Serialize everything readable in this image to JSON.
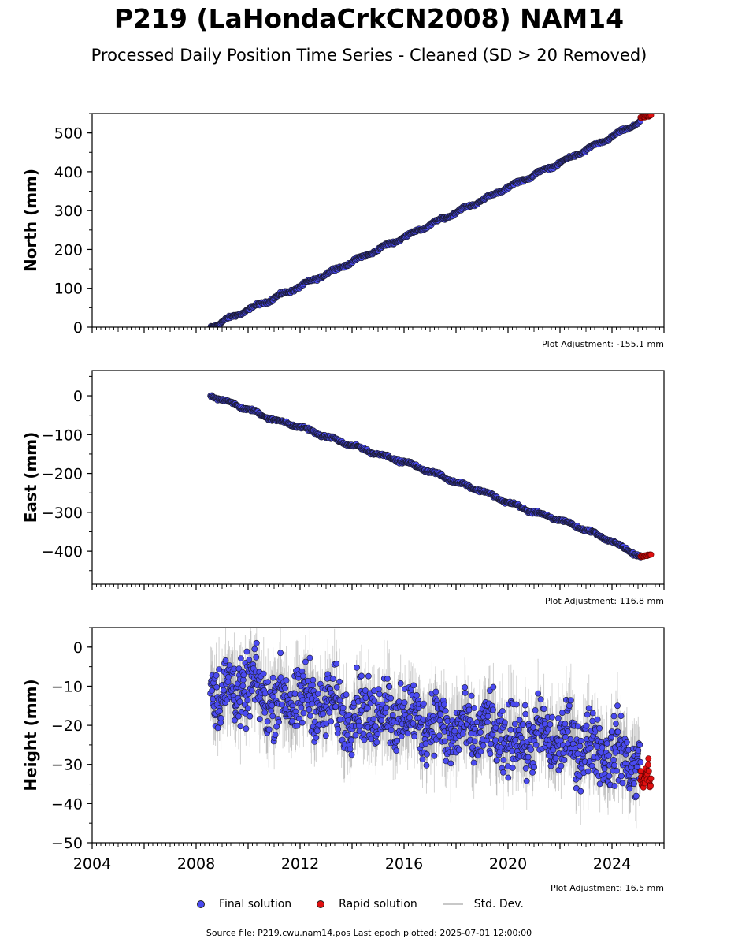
{
  "title": "P219 (LaHondaCrkCN2008) NAM14",
  "subtitle": "Processed Daily Position Time Series - Cleaned (SD > 20 Removed)",
  "source_line": "Source file: P219.cwu.nam14.pos  Last epoch plotted: 2025-07-01 12:00:00",
  "legend": {
    "final": "Final solution",
    "rapid": "Rapid solution",
    "std": "Std. Dev."
  },
  "colors": {
    "final": "#4a4af0",
    "rapid": "#e01010",
    "std": "#808080",
    "edge": "#1a1a2e"
  },
  "chart_data": [
    {
      "type": "scatter",
      "component": "north",
      "ylabel": "North (mm)",
      "adjustment": "Plot Adjustment: -155.1 mm",
      "xlim": [
        2004.0,
        2026.0
      ],
      "ylim": [
        0,
        550
      ],
      "yticks": [
        0,
        100,
        200,
        300,
        400,
        500
      ],
      "yticks_labels": [
        "0",
        "100",
        "200",
        "300",
        "400",
        "500"
      ],
      "x_ticks_labels": [],
      "series": [
        {
          "role": "final",
          "x": [
            2008.55,
            2009.0,
            2010.0,
            2011.0,
            2012.0,
            2013.0,
            2014.0,
            2015.0,
            2016.0,
            2017.0,
            2018.0,
            2019.0,
            2020.0,
            2021.0,
            2022.0,
            2023.0,
            2024.0,
            2025.1
          ],
          "y": [
            0,
            14,
            45,
            75,
            105,
            137,
            168,
            200,
            232,
            263,
            296,
            327,
            360,
            392,
            423,
            456,
            490,
            530
          ]
        },
        {
          "role": "rapid",
          "x": [
            2025.1,
            2025.25,
            2025.4,
            2025.5
          ],
          "y": [
            538,
            541,
            543,
            545
          ]
        }
      ]
    },
    {
      "type": "scatter",
      "component": "east",
      "ylabel": "East (mm)",
      "adjustment": "Plot Adjustment: 116.8 mm",
      "xlim": [
        2004.0,
        2026.0
      ],
      "ylim": [
        -485,
        65
      ],
      "yticks": [
        -400,
        -300,
        -200,
        -100,
        0
      ],
      "yticks_labels": [
        "−400",
        "−300",
        "−200",
        "−100",
        "0"
      ],
      "x_ticks_labels": [],
      "series": [
        {
          "role": "final",
          "x": [
            2008.55,
            2009.0,
            2010.0,
            2011.0,
            2012.0,
            2013.0,
            2014.0,
            2015.0,
            2016.0,
            2017.0,
            2018.0,
            2019.0,
            2020.0,
            2021.0,
            2022.0,
            2023.0,
            2024.0,
            2025.1
          ],
          "y": [
            0,
            -10,
            -35,
            -62,
            -80,
            -105,
            -128,
            -150,
            -170,
            -195,
            -222,
            -245,
            -275,
            -300,
            -320,
            -345,
            -375,
            -415
          ]
        },
        {
          "role": "rapid",
          "x": [
            2025.1,
            2025.25,
            2025.4,
            2025.5
          ],
          "y": [
            -414,
            -412,
            -410,
            -408
          ]
        }
      ]
    },
    {
      "type": "scatter",
      "component": "height",
      "ylabel": "Height (mm)",
      "adjustment": "Plot Adjustment: 16.5 mm",
      "xlim": [
        2004.0,
        2026.0
      ],
      "ylim": [
        -50,
        5
      ],
      "yticks": [
        -50,
        -40,
        -30,
        -20,
        -10,
        0
      ],
      "yticks_labels": [
        "−50",
        "−40",
        "−30",
        "−20",
        "−10",
        "0"
      ],
      "x_ticks": [
        2004,
        2008,
        2012,
        2016,
        2020,
        2024
      ],
      "x_ticks_labels": [
        "2004",
        "2008",
        "2012",
        "2016",
        "2020",
        "2024"
      ],
      "series": [
        {
          "role": "final",
          "x": [
            2008.55,
            2009.0,
            2010.0,
            2011.0,
            2012.0,
            2013.0,
            2014.0,
            2015.0,
            2016.0,
            2017.0,
            2018.0,
            2019.0,
            2020.0,
            2021.0,
            2022.0,
            2023.0,
            2024.0,
            2025.1
          ],
          "y": [
            -8,
            -12,
            -10,
            -14,
            -13,
            -15,
            -17,
            -16,
            -18,
            -19,
            -22,
            -21,
            -24,
            -23,
            -24,
            -25,
            -27,
            -30
          ]
        },
        {
          "role": "rapid",
          "x": [
            2025.1,
            2025.25,
            2025.4,
            2025.5
          ],
          "y": [
            -33,
            -34,
            -31,
            -35
          ]
        }
      ]
    }
  ]
}
